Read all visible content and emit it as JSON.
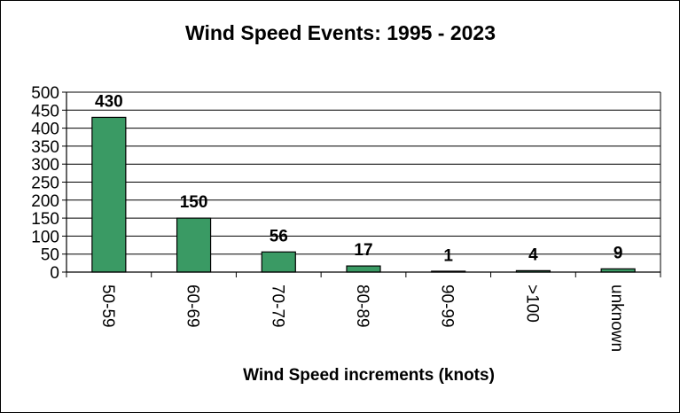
{
  "chart_data": {
    "type": "bar",
    "title": "Wind Speed Events: 1995 - 2023",
    "xlabel": "Wind Speed increments (knots)",
    "ylabel": "",
    "categories": [
      "50-59",
      "60-69",
      "70-79",
      "80-89",
      "90-99",
      ">100",
      "unknown"
    ],
    "values": [
      430,
      150,
      56,
      17,
      1,
      4,
      9
    ],
    "ylim": [
      0,
      500
    ],
    "yticks": [
      0,
      50,
      100,
      150,
      200,
      250,
      300,
      350,
      400,
      450,
      500
    ],
    "grid": true,
    "legend": "none",
    "bar_color": "#3a9a64"
  }
}
